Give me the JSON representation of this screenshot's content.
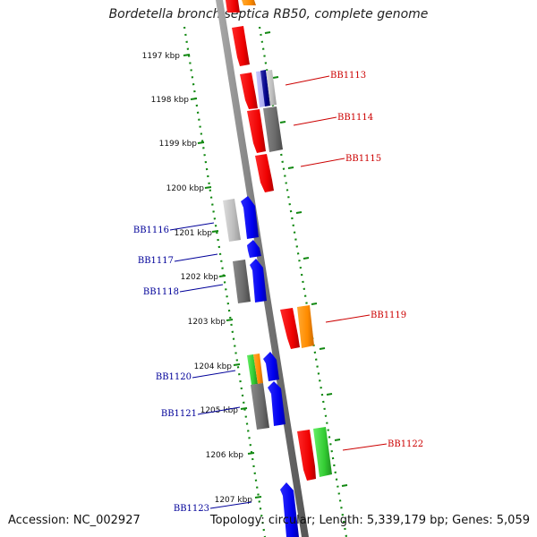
{
  "title": "Bordetella bronchiseptica RB50, complete genome",
  "footer": {
    "accession": "Accession: NC_002927",
    "summary": "Topology: circular; Length: 5,339,179 bp; Genes: 5,059"
  },
  "scale_labels": [
    "1197 kbp",
    "1198 kbp",
    "1199 kbp",
    "1200 kbp",
    "1201 kbp",
    "1202 kbp",
    "1203 kbp",
    "1204 kbp",
    "1205 kbp",
    "1206 kbp",
    "1207 kbp"
  ],
  "gene_labels": {
    "right": [
      "BB1113",
      "BB1114",
      "BB1115",
      "BB1119",
      "BB1122"
    ],
    "left": [
      "BB1116",
      "BB1117",
      "BB1118",
      "BB1120",
      "BB1121",
      "BB1123"
    ]
  },
  "colors": {
    "forward_label": "#cc0000",
    "reverse_label": "#000099",
    "tick": "#118811",
    "backbone": "#777777"
  }
}
